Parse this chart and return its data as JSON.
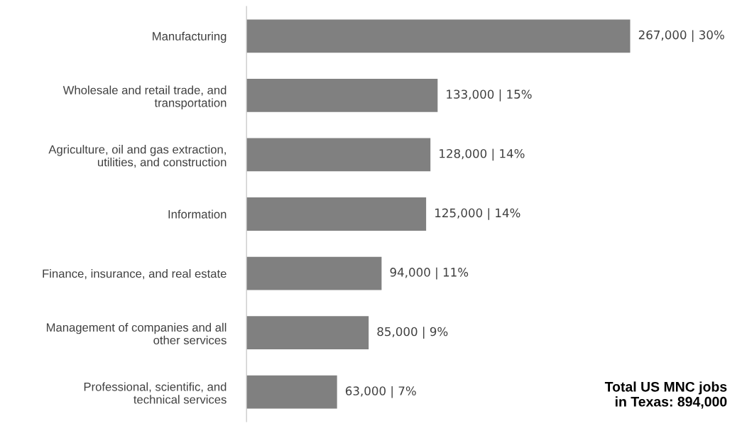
{
  "chart_data": {
    "type": "bar",
    "orientation": "horizontal",
    "categories": [
      "Manufacturing",
      "Wholesale and retail trade, and\ntransportation",
      "Agriculture, oil and gas extraction,\nutilities, and construction",
      "Information",
      "Finance, insurance, and real estate",
      "Management of companies and all\nother services",
      "Professional, scientific, and\ntechnical services"
    ],
    "values": [
      267000,
      133000,
      128000,
      125000,
      94000,
      85000,
      63000
    ],
    "value_labels": [
      "267,000 | 30%",
      "133,000 | 15%",
      "128,000 | 14%",
      "125,000 | 14%",
      "94,000 | 11%",
      "85,000 | 9%",
      "63,000 | 7%"
    ],
    "color": "#808080",
    "annotations": [
      "Total US MNC jobs\nin Texas: 894,000"
    ],
    "grid": false,
    "legend": false,
    "tick_labels": "y"
  }
}
